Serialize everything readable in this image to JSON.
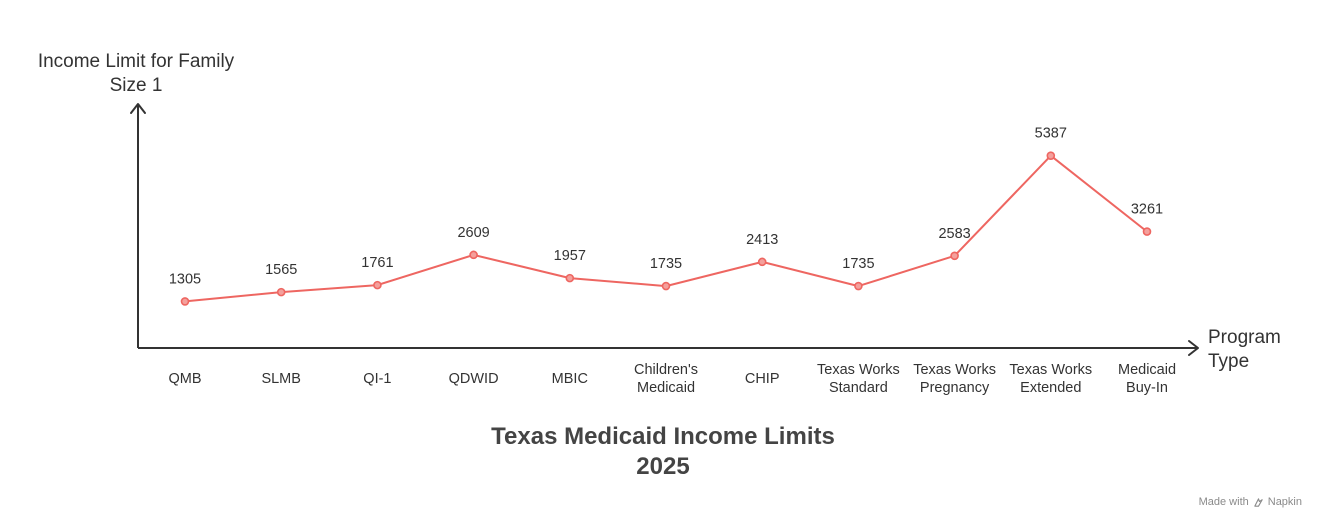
{
  "chart_data": {
    "type": "line",
    "title": [
      "Texas Medicaid Income Limits",
      "2025"
    ],
    "ylabel": [
      "Income Limit for Family",
      "Size 1"
    ],
    "xlabel": [
      "Program",
      "Type"
    ],
    "categories": [
      [
        "QMB"
      ],
      [
        "SLMB"
      ],
      [
        "QI-1"
      ],
      [
        "QDWID"
      ],
      [
        "MBIC"
      ],
      [
        "Children's",
        "Medicaid"
      ],
      [
        "CHIP"
      ],
      [
        "Texas Works",
        "Standard"
      ],
      [
        "Texas Works",
        "Pregnancy"
      ],
      [
        "Texas Works",
        "Extended"
      ],
      [
        "Medicaid",
        "Buy-In"
      ]
    ],
    "series": [
      {
        "values": [
          1305,
          1565,
          1761,
          2609,
          1957,
          1735,
          2413,
          1735,
          2583,
          5387,
          3261
        ]
      }
    ],
    "ylim": [
      0,
      5900
    ],
    "grid": false,
    "line_color": "#ee6661",
    "axis_color": "#333333"
  },
  "watermark": {
    "text": "Made with",
    "brand": "Napkin"
  }
}
